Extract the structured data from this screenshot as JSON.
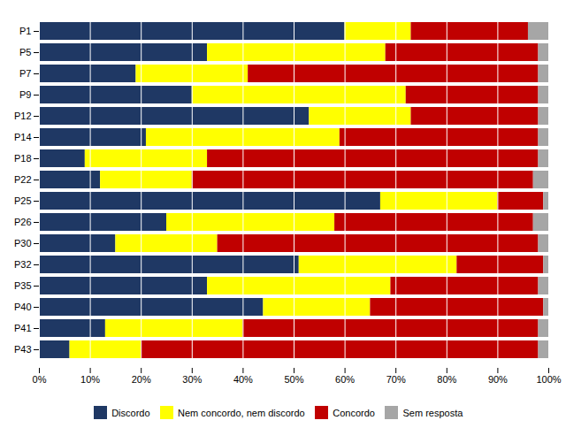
{
  "chart_data": {
    "type": "bar",
    "orientation": "horizontal",
    "stacked": true,
    "categories": [
      "P1",
      "P5",
      "P7",
      "P9",
      "P12",
      "P14",
      "P18",
      "P22",
      "P25",
      "P26",
      "P30",
      "P32",
      "P35",
      "P40",
      "P41",
      "P43"
    ],
    "series": [
      {
        "name": "Discordo",
        "color": "#1F3864",
        "values": [
          60,
          33,
          19,
          30,
          53,
          21,
          9,
          12,
          67,
          25,
          15,
          51,
          33,
          44,
          13,
          6
        ]
      },
      {
        "name": "Nem concordo, nem discordo",
        "color": "#FFFF00",
        "values": [
          13,
          35,
          22,
          42,
          20,
          38,
          24,
          18,
          23,
          33,
          20,
          31,
          36,
          21,
          27,
          14
        ]
      },
      {
        "name": "Concordo",
        "color": "#C00000",
        "values": [
          23,
          30,
          57,
          26,
          25,
          39,
          65,
          67,
          9,
          39,
          63,
          17,
          29,
          34,
          58,
          78
        ]
      },
      {
        "name": "Sem resposta",
        "color": "#A6A6A6",
        "values": [
          4,
          2,
          2,
          2,
          2,
          2,
          2,
          3,
          1,
          3,
          2,
          1,
          2,
          1,
          2,
          2
        ]
      }
    ],
    "xlim": [
      0,
      100
    ],
    "xticks": [
      {
        "value": 0,
        "label": "0%"
      },
      {
        "value": 10,
        "label": "10%"
      },
      {
        "value": 20,
        "label": "20%"
      },
      {
        "value": 30,
        "label": "30%"
      },
      {
        "value": 40,
        "label": "40%"
      },
      {
        "value": 50,
        "label": "50%"
      },
      {
        "value": 60,
        "label": "60%"
      },
      {
        "value": 70,
        "label": "70%"
      },
      {
        "value": 80,
        "label": "80%"
      },
      {
        "value": 90,
        "label": "90%"
      },
      {
        "value": 100,
        "label": "100%"
      }
    ],
    "grid": true,
    "legend": "bottom"
  }
}
